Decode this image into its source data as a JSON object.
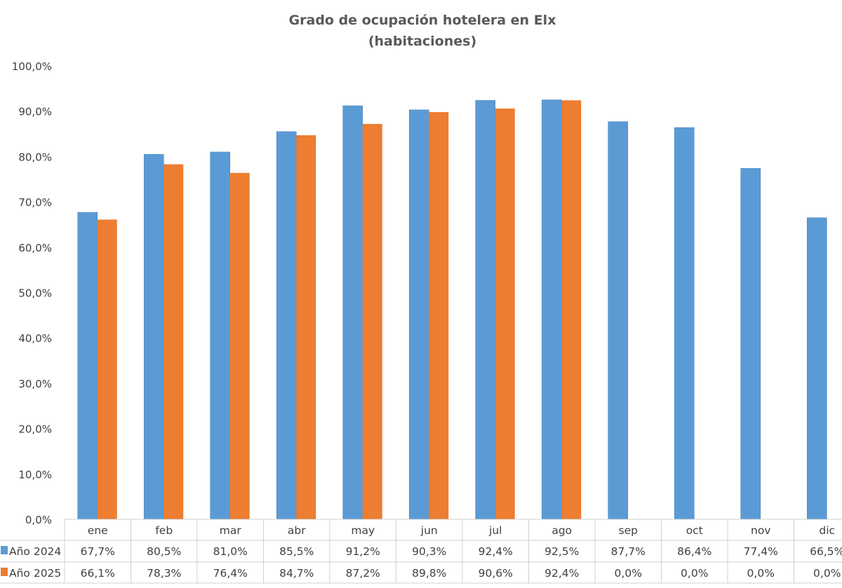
{
  "chart_data": {
    "type": "bar",
    "title": "Grado de ocupación hotelera en Elx",
    "subtitle": "(habitaciones)",
    "xlabel": "",
    "ylabel": "",
    "ylim": [
      0,
      100
    ],
    "yticks": [
      "0,0%",
      "10,0%",
      "20,0%",
      "30,0%",
      "40,0%",
      "50,0%",
      "60,0%",
      "70,0%",
      "80,0%",
      "90,0%",
      "100,0%"
    ],
    "grid": false,
    "legend": "data-table",
    "categories": [
      "ene",
      "feb",
      "mar",
      "abr",
      "may",
      "jun",
      "jul",
      "ago",
      "sep",
      "oct",
      "nov",
      "dic"
    ],
    "series": [
      {
        "name": "Año 2024",
        "color": "#5b9bd5",
        "values": [
          67.7,
          80.5,
          81.0,
          85.5,
          91.2,
          90.3,
          92.4,
          92.5,
          87.7,
          86.4,
          77.4,
          66.5
        ],
        "labels": [
          "67,7%",
          "80,5%",
          "81,0%",
          "85,5%",
          "91,2%",
          "90,3%",
          "92,4%",
          "92,5%",
          "87,7%",
          "86,4%",
          "77,4%",
          "66,5%"
        ]
      },
      {
        "name": "Año 2025",
        "color": "#ed7d31",
        "values": [
          66.1,
          78.3,
          76.4,
          84.7,
          87.2,
          89.8,
          90.6,
          92.4,
          0,
          0,
          0,
          0
        ],
        "labels": [
          "66,1%",
          "78,3%",
          "76,4%",
          "84,7%",
          "87,2%",
          "89,8%",
          "90,6%",
          "92,4%",
          "0,0%",
          "0,0%",
          "0,0%",
          "0,0%"
        ]
      }
    ]
  }
}
